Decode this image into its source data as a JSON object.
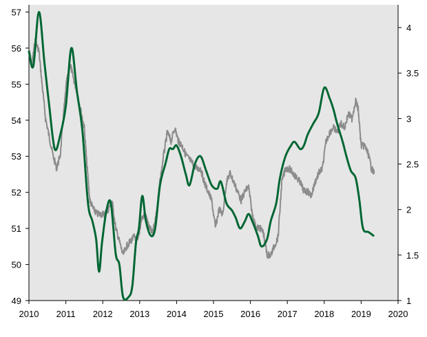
{
  "chart_data": {
    "type": "line",
    "title": "",
    "xlabel": "",
    "ylabel": "",
    "y2label": "",
    "grid": false,
    "legend": "none",
    "background": "#e6e6e6",
    "xlim": [
      2010,
      2020
    ],
    "ylim": [
      49,
      57.2
    ],
    "y2lim": [
      1,
      4.25
    ],
    "x_ticks": [
      "2010",
      "2011",
      "2012",
      "2013",
      "2014",
      "2015",
      "2016",
      "2017",
      "2018",
      "2019",
      "2020"
    ],
    "y_ticks": [
      "49",
      "50",
      "51",
      "52",
      "53",
      "54",
      "55",
      "56",
      "57"
    ],
    "y2_ticks": [
      "1",
      "1.5",
      "2",
      "2.5",
      "3",
      "3.5",
      "4"
    ],
    "series": [
      {
        "axis": "left",
        "color": "#006633",
        "style": "smooth",
        "points": [
          [
            2010.0,
            55.9
          ],
          [
            2010.12,
            55.5
          ],
          [
            2010.27,
            57.0
          ],
          [
            2010.42,
            55.6
          ],
          [
            2010.55,
            54.4
          ],
          [
            2010.7,
            53.2
          ],
          [
            2010.85,
            53.6
          ],
          [
            2011.0,
            54.4
          ],
          [
            2011.15,
            56.0
          ],
          [
            2011.3,
            54.8
          ],
          [
            2011.45,
            53.7
          ],
          [
            2011.6,
            51.7
          ],
          [
            2011.72,
            51.2
          ],
          [
            2011.82,
            50.7
          ],
          [
            2011.9,
            49.8
          ],
          [
            2011.98,
            50.6
          ],
          [
            2012.1,
            51.5
          ],
          [
            2012.22,
            51.7
          ],
          [
            2012.35,
            50.3
          ],
          [
            2012.45,
            50.0
          ],
          [
            2012.55,
            49.1
          ],
          [
            2012.7,
            49.1
          ],
          [
            2012.8,
            49.4
          ],
          [
            2012.9,
            50.6
          ],
          [
            2012.98,
            51.0
          ],
          [
            2013.07,
            51.9
          ],
          [
            2013.17,
            51.2
          ],
          [
            2013.3,
            50.8
          ],
          [
            2013.42,
            51.0
          ],
          [
            2013.55,
            52.2
          ],
          [
            2013.7,
            52.8
          ],
          [
            2013.8,
            53.2
          ],
          [
            2013.9,
            53.2
          ],
          [
            2014.0,
            53.3
          ],
          [
            2014.12,
            53.0
          ],
          [
            2014.25,
            52.5
          ],
          [
            2014.35,
            52.2
          ],
          [
            2014.5,
            52.8
          ],
          [
            2014.65,
            53.0
          ],
          [
            2014.8,
            52.6
          ],
          [
            2014.95,
            52.2
          ],
          [
            2015.1,
            52.1
          ],
          [
            2015.2,
            52.3
          ],
          [
            2015.35,
            51.7
          ],
          [
            2015.5,
            51.5
          ],
          [
            2015.6,
            51.3
          ],
          [
            2015.72,
            51.0
          ],
          [
            2015.85,
            51.2
          ],
          [
            2015.95,
            51.4
          ],
          [
            2016.05,
            51.2
          ],
          [
            2016.2,
            50.8
          ],
          [
            2016.3,
            50.5
          ],
          [
            2016.45,
            50.7
          ],
          [
            2016.55,
            51.2
          ],
          [
            2016.7,
            51.7
          ],
          [
            2016.8,
            52.4
          ],
          [
            2016.95,
            53.0
          ],
          [
            2017.1,
            53.3
          ],
          [
            2017.2,
            53.4
          ],
          [
            2017.35,
            53.2
          ],
          [
            2017.45,
            53.3
          ],
          [
            2017.55,
            53.6
          ],
          [
            2017.7,
            53.9
          ],
          [
            2017.85,
            54.2
          ],
          [
            2018.0,
            54.9
          ],
          [
            2018.15,
            54.6
          ],
          [
            2018.25,
            54.3
          ],
          [
            2018.35,
            53.9
          ],
          [
            2018.5,
            53.4
          ],
          [
            2018.6,
            53.0
          ],
          [
            2018.72,
            52.6
          ],
          [
            2018.85,
            52.4
          ],
          [
            2018.95,
            51.8
          ],
          [
            2019.05,
            51.0
          ],
          [
            2019.2,
            50.9
          ],
          [
            2019.33,
            50.8
          ]
        ]
      },
      {
        "axis": "right",
        "color": "#8c8c8c",
        "style": "noisy",
        "points": [
          [
            2010.0,
            3.75
          ],
          [
            2010.08,
            3.6
          ],
          [
            2010.17,
            3.85
          ],
          [
            2010.27,
            3.75
          ],
          [
            2010.35,
            3.4
          ],
          [
            2010.45,
            3.0
          ],
          [
            2010.55,
            2.8
          ],
          [
            2010.65,
            2.6
          ],
          [
            2010.75,
            2.45
          ],
          [
            2010.85,
            2.6
          ],
          [
            2010.95,
            3.1
          ],
          [
            2011.02,
            3.4
          ],
          [
            2011.12,
            3.6
          ],
          [
            2011.2,
            3.45
          ],
          [
            2011.3,
            3.3
          ],
          [
            2011.4,
            3.1
          ],
          [
            2011.5,
            2.9
          ],
          [
            2011.57,
            2.5
          ],
          [
            2011.65,
            2.1
          ],
          [
            2011.75,
            2.0
          ],
          [
            2011.85,
            1.95
          ],
          [
            2011.95,
            1.95
          ],
          [
            2012.05,
            1.95
          ],
          [
            2012.15,
            2.0
          ],
          [
            2012.25,
            2.1
          ],
          [
            2012.35,
            1.8
          ],
          [
            2012.45,
            1.65
          ],
          [
            2012.55,
            1.5
          ],
          [
            2012.65,
            1.6
          ],
          [
            2012.75,
            1.65
          ],
          [
            2012.85,
            1.7
          ],
          [
            2012.95,
            1.65
          ],
          [
            2013.05,
            1.9
          ],
          [
            2013.15,
            1.95
          ],
          [
            2013.25,
            1.8
          ],
          [
            2013.35,
            1.75
          ],
          [
            2013.45,
            1.95
          ],
          [
            2013.55,
            2.3
          ],
          [
            2013.65,
            2.6
          ],
          [
            2013.75,
            2.85
          ],
          [
            2013.85,
            2.75
          ],
          [
            2013.95,
            2.9
          ],
          [
            2014.05,
            2.75
          ],
          [
            2014.15,
            2.7
          ],
          [
            2014.25,
            2.6
          ],
          [
            2014.35,
            2.55
          ],
          [
            2014.45,
            2.5
          ],
          [
            2014.55,
            2.45
          ],
          [
            2014.65,
            2.45
          ],
          [
            2014.75,
            2.3
          ],
          [
            2014.85,
            2.2
          ],
          [
            2014.95,
            2.1
          ],
          [
            2015.05,
            1.8
          ],
          [
            2015.15,
            2.0
          ],
          [
            2015.25,
            1.95
          ],
          [
            2015.35,
            2.3
          ],
          [
            2015.45,
            2.4
          ],
          [
            2015.55,
            2.3
          ],
          [
            2015.65,
            2.2
          ],
          [
            2015.75,
            2.1
          ],
          [
            2015.85,
            2.2
          ],
          [
            2015.95,
            2.25
          ],
          [
            2016.05,
            1.95
          ],
          [
            2016.15,
            1.8
          ],
          [
            2016.25,
            1.8
          ],
          [
            2016.35,
            1.75
          ],
          [
            2016.45,
            1.5
          ],
          [
            2016.55,
            1.5
          ],
          [
            2016.65,
            1.6
          ],
          [
            2016.75,
            1.7
          ],
          [
            2016.85,
            2.3
          ],
          [
            2016.95,
            2.45
          ],
          [
            2017.05,
            2.45
          ],
          [
            2017.15,
            2.4
          ],
          [
            2017.25,
            2.35
          ],
          [
            2017.35,
            2.3
          ],
          [
            2017.45,
            2.2
          ],
          [
            2017.55,
            2.2
          ],
          [
            2017.65,
            2.15
          ],
          [
            2017.75,
            2.3
          ],
          [
            2017.85,
            2.4
          ],
          [
            2017.95,
            2.45
          ],
          [
            2018.05,
            2.75
          ],
          [
            2018.15,
            2.85
          ],
          [
            2018.25,
            2.9
          ],
          [
            2018.35,
            2.85
          ],
          [
            2018.45,
            2.95
          ],
          [
            2018.55,
            2.9
          ],
          [
            2018.65,
            3.05
          ],
          [
            2018.75,
            3.0
          ],
          [
            2018.85,
            3.2
          ],
          [
            2018.92,
            3.1
          ],
          [
            2019.0,
            2.7
          ],
          [
            2019.1,
            2.7
          ],
          [
            2019.2,
            2.6
          ],
          [
            2019.28,
            2.45
          ],
          [
            2019.35,
            2.4
          ]
        ]
      }
    ]
  }
}
